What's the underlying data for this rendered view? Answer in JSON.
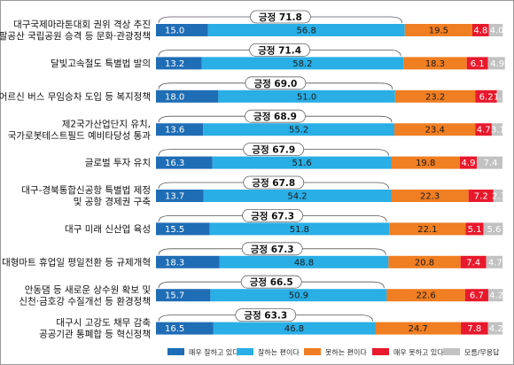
{
  "chart_data": {
    "type": "bar",
    "orientation": "horizontal",
    "stacked": true,
    "xlim": [
      0,
      100
    ],
    "positive_prefix": "긍정",
    "categories": [
      [
        "대구국제마라톤대회 권위 격상 추진",
        "팔공산 국립공원 승격 등 문화·관광정책"
      ],
      [
        "달빛고속철도 특별법 발의"
      ],
      [
        "어르신 버스 무임승차 도입 등 복지정책"
      ],
      [
        "제2국가산업단지 유치,",
        "국가로봇테스트필드 예비타당성 통과"
      ],
      [
        "글로벌 투자 유치"
      ],
      [
        "대구-경북통합신공항 특별법 제정",
        "및 공항 경제권 구축"
      ],
      [
        "대구 미래 신산업 육성"
      ],
      [
        "대형마트 휴업일 평일전환 등 규제개혁"
      ],
      [
        "안동댐 등 새로운 상수원 확보 및",
        "신천·금호강 수질개선 등 환경정책"
      ],
      [
        "대구시 고강도 채무 감축",
        "공공기관 통폐합 등 혁신정책"
      ]
    ],
    "positive_totals": [
      "71.8",
      "71.4",
      "69.0",
      "68.9",
      "67.9",
      "67.8",
      "67.3",
      "67.3",
      "66.5",
      "63.3"
    ],
    "series": [
      {
        "name": "매우 잘하고 있다",
        "color": "#1f6db5",
        "text_color": "#ffffff",
        "values": [
          15.0,
          13.2,
          18.0,
          13.6,
          16.3,
          13.7,
          15.5,
          18.3,
          15.7,
          16.5
        ],
        "labels": [
          "15.0",
          "13.2",
          "18.0",
          "13.6",
          "16.3",
          "13.7",
          "15.5",
          "18.3",
          "15.7",
          "16.5"
        ]
      },
      {
        "name": "잘하는 편이다",
        "color": "#29aee5",
        "text_color": "#1a1a1a",
        "values": [
          56.8,
          58.2,
          51.0,
          55.2,
          51.6,
          54.2,
          51.8,
          48.8,
          50.9,
          46.8
        ],
        "labels": [
          "56.8",
          "58.2",
          "51.0",
          "55.2",
          "51.6",
          "54.2",
          "51.8",
          "48.8",
          "50.9",
          "46.8"
        ]
      },
      {
        "name": "못하는 편이다",
        "color": "#f07e22",
        "text_color": "#1a1a1a",
        "values": [
          19.5,
          18.3,
          23.2,
          23.4,
          19.8,
          22.3,
          22.1,
          20.8,
          22.6,
          24.7
        ],
        "labels": [
          "19.5",
          "18.3",
          "23.2",
          "23.4",
          "19.8",
          "22.3",
          "22.1",
          "20.8",
          "22.6",
          "24.7"
        ]
      },
      {
        "name": "매우 못하고 있다",
        "color": "#e8192c",
        "text_color": "#ffffff",
        "values": [
          4.8,
          6.1,
          6.2,
          4.7,
          4.9,
          7.2,
          5.1,
          7.4,
          6.7,
          7.8
        ],
        "labels": [
          "4.8",
          "6.1",
          "6.2",
          "4.7",
          "4.9",
          "7.2",
          "5.1",
          "7.4",
          "6.7",
          "7.8"
        ]
      },
      {
        "name": "모름/무응답",
        "color": "#c2c2c2",
        "text_color": "#ffffff",
        "values": [
          4.0,
          4.9,
          1.6,
          3.1,
          7.4,
          2.7,
          5.6,
          4.7,
          4.2,
          4.2
        ],
        "labels": [
          "4.0",
          "4.9",
          "1.6",
          "3.1",
          "7.4",
          "2.7",
          "5.6",
          "4.7",
          "4.2",
          "4.2"
        ]
      }
    ]
  }
}
